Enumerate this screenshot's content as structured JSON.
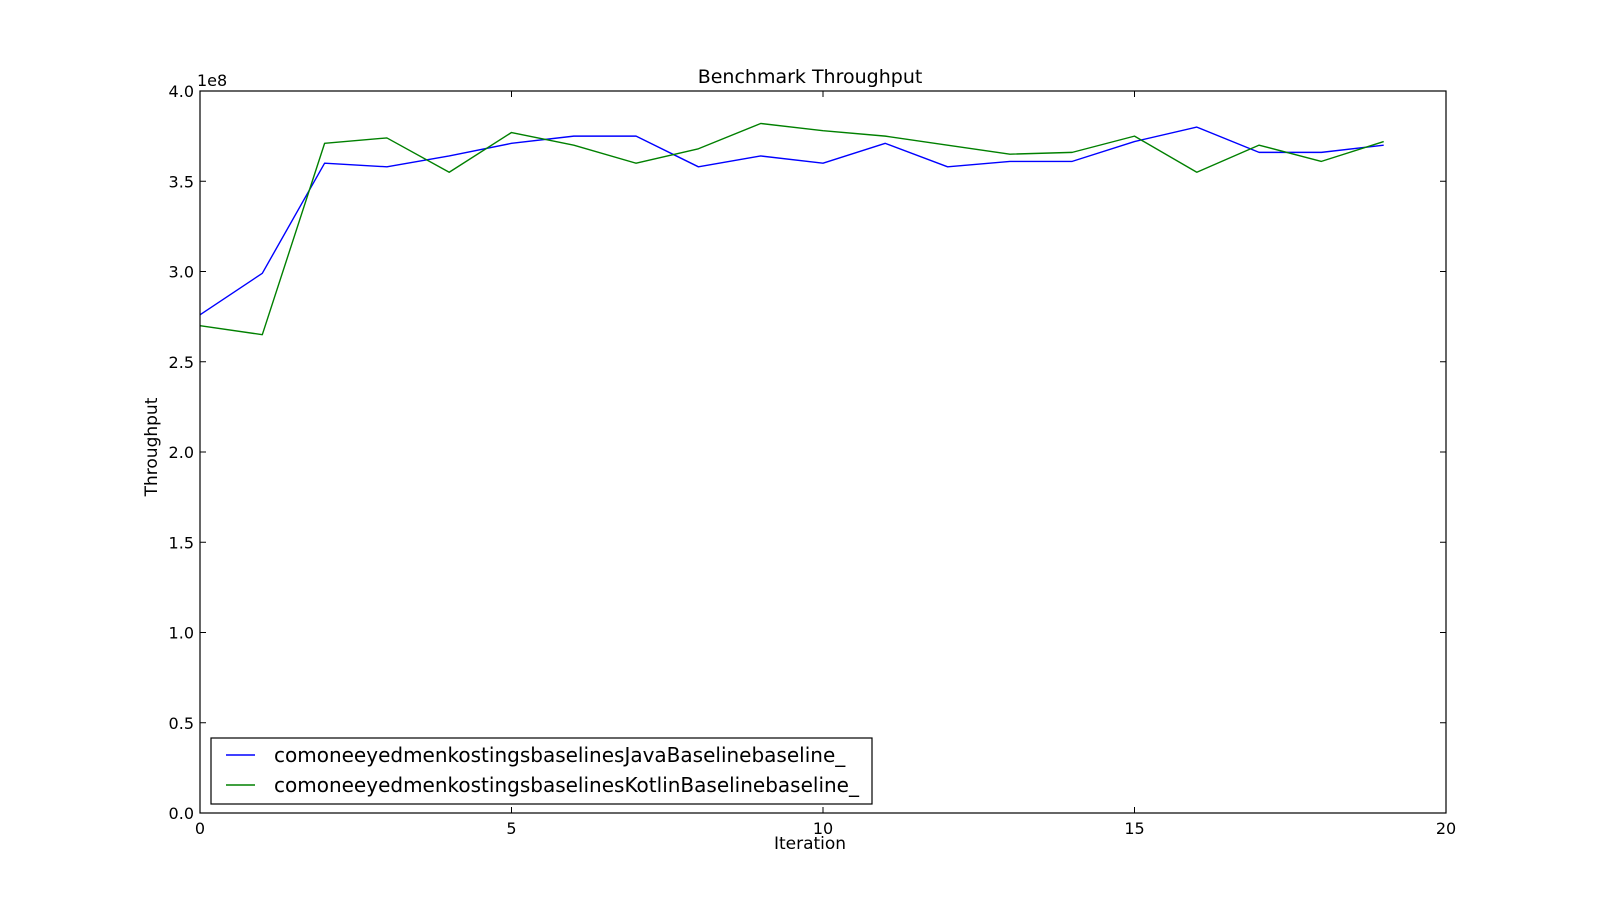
{
  "chart_data": {
    "type": "line",
    "title": "Benchmark Throughput",
    "xlabel": "Iteration",
    "ylabel": "Throughput",
    "y_offset_label": "1e8",
    "xlim": [
      0,
      20
    ],
    "ylim": [
      0,
      4.0
    ],
    "y_scale_factor": 100000000,
    "x_ticks": [
      0,
      5,
      10,
      15,
      20
    ],
    "x_tick_labels": [
      "0",
      "5",
      "10",
      "15",
      "20"
    ],
    "y_ticks": [
      0.0,
      0.5,
      1.0,
      1.5,
      2.0,
      2.5,
      3.0,
      3.5,
      4.0
    ],
    "y_tick_labels": [
      "0.0",
      "0.5",
      "1.0",
      "1.5",
      "2.0",
      "2.5",
      "3.0",
      "3.5",
      "4.0"
    ],
    "grid": false,
    "legend_position": "lower-left",
    "x": [
      0,
      1,
      2,
      3,
      4,
      5,
      6,
      7,
      8,
      9,
      10,
      11,
      12,
      13,
      14,
      15,
      16,
      17,
      18,
      19
    ],
    "series": [
      {
        "name": "comoneeyedmenkostingsbaselinesJavaBaselinebaseline_",
        "color": "#0000ff",
        "values": [
          2.76,
          2.99,
          3.6,
          3.58,
          3.64,
          3.71,
          3.75,
          3.75,
          3.58,
          3.64,
          3.6,
          3.71,
          3.58,
          3.61,
          3.61,
          3.72,
          3.8,
          3.66,
          3.66,
          3.7
        ]
      },
      {
        "name": "comoneeyedmenkostingsbaselinesKotlinBaselinebaseline_",
        "color": "#008000",
        "values": [
          2.7,
          2.65,
          3.71,
          3.74,
          3.55,
          3.77,
          3.7,
          3.6,
          3.68,
          3.82,
          3.78,
          3.75,
          3.7,
          3.65,
          3.66,
          3.75,
          3.55,
          3.7,
          3.61,
          3.72
        ]
      }
    ]
  }
}
